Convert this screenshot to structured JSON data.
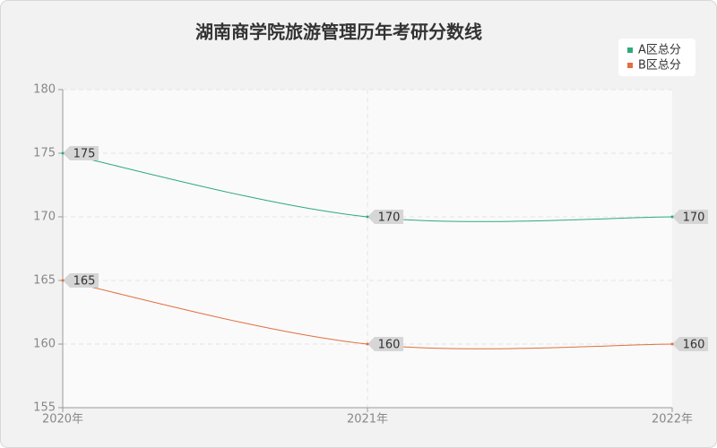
{
  "chart_data": {
    "type": "line",
    "title": "湖南商学院旅游管理历年考研分数线",
    "categories": [
      "2020年",
      "2021年",
      "2022年"
    ],
    "series": [
      {
        "name": "A区总分",
        "color": "#2eaa7a",
        "values": [
          175,
          170,
          170
        ]
      },
      {
        "name": "B区总分",
        "color": "#e0703f",
        "values": [
          165,
          160,
          160
        ]
      }
    ],
    "ylim": [
      155,
      180
    ],
    "yticks": [
      155,
      160,
      165,
      170,
      175,
      180
    ],
    "grid": true,
    "legend": "top-right"
  }
}
